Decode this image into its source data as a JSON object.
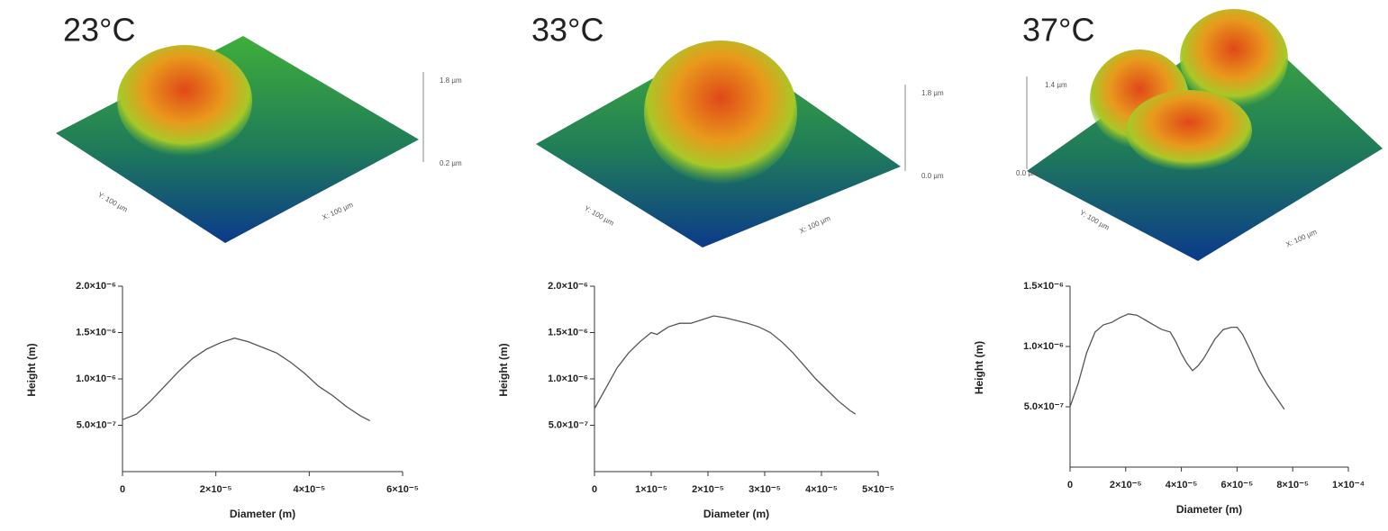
{
  "chart_data": [
    {
      "type": "line",
      "title": "23°C",
      "x_label": "Diameter (m)",
      "y_label": "Height (m)",
      "color": "#555555",
      "surface": {
        "z_top": "1.8 µm",
        "z_bottom": "0.2 µm",
        "y_axis": "Y: 100 µm",
        "x_axis": "X: 100 µm"
      },
      "xlim": [
        0,
        6e-05
      ],
      "xticks": [
        0,
        {
          "value": 2e-05,
          "label": "2×10⁻⁵"
        },
        {
          "value": 4e-05,
          "label": "4×10⁻⁵"
        },
        {
          "value": 6e-05,
          "label": "6×10⁻⁵"
        }
      ],
      "ylim": [
        0,
        2e-06
      ],
      "yticks": [
        {
          "value": 5e-07,
          "label": "5.0×10⁻⁷"
        },
        {
          "value": 1e-06,
          "label": "1.0×10⁻⁶"
        },
        {
          "value": 1.5e-06,
          "label": "1.5×10⁻⁶"
        },
        {
          "value": 2e-06,
          "label": "2.0×10⁻⁶"
        }
      ],
      "x": [
        0,
        3e-06,
        6e-06,
        9e-06,
        1.2e-05,
        1.5e-05,
        1.8e-05,
        2.1e-05,
        2.4e-05,
        2.7e-05,
        3e-05,
        3.3e-05,
        3.6e-05,
        3.9e-05,
        4.2e-05,
        4.5e-05,
        4.8e-05,
        5.1e-05,
        5.3e-05
      ],
      "values": [
        5.6e-07,
        6.2e-07,
        7.6e-07,
        9.2e-07,
        1.08e-06,
        1.22e-06,
        1.32e-06,
        1.39e-06,
        1.44e-06,
        1.4e-06,
        1.34e-06,
        1.28e-06,
        1.18e-06,
        1.06e-06,
        9.2e-07,
        8.2e-07,
        7e-07,
        6e-07,
        5.5e-07
      ]
    },
    {
      "type": "line",
      "title": "33°C",
      "x_label": "Diameter (m)",
      "y_label": "Height (m)",
      "color": "#555555",
      "surface": {
        "z_top": "1.8 µm",
        "z_bottom": "0.0 µm",
        "y_axis": "Y: 100 µm",
        "x_axis": "X: 100 µm"
      },
      "xlim": [
        0,
        5e-05
      ],
      "xticks": [
        0,
        {
          "value": 1e-05,
          "label": "1×10⁻⁵"
        },
        {
          "value": 2e-05,
          "label": "2×10⁻⁵"
        },
        {
          "value": 3e-05,
          "label": "3×10⁻⁵"
        },
        {
          "value": 4e-05,
          "label": "4×10⁻⁵"
        },
        {
          "value": 5e-05,
          "label": "5×10⁻⁵"
        }
      ],
      "ylim": [
        0,
        2e-06
      ],
      "yticks": [
        {
          "value": 5e-07,
          "label": "5.0×10⁻⁷"
        },
        {
          "value": 1e-06,
          "label": "1.0×10⁻⁶"
        },
        {
          "value": 1.5e-06,
          "label": "1.5×10⁻⁶"
        },
        {
          "value": 2e-06,
          "label": "2.0×10⁻⁶"
        }
      ],
      "x": [
        0,
        2e-06,
        4e-06,
        6e-06,
        8e-06,
        1e-05,
        1.1e-05,
        1.3e-05,
        1.5e-05,
        1.7e-05,
        1.9e-05,
        2.1e-05,
        2.3e-05,
        2.5e-05,
        2.7e-05,
        2.9e-05,
        3.1e-05,
        3.3e-05,
        3.5e-05,
        3.7e-05,
        3.9e-05,
        4.1e-05,
        4.3e-05,
        4.5e-05,
        4.6e-05
      ],
      "values": [
        6.8e-07,
        9e-07,
        1.12e-06,
        1.28e-06,
        1.4e-06,
        1.5e-06,
        1.48e-06,
        1.56e-06,
        1.6e-06,
        1.6e-06,
        1.64e-06,
        1.68e-06,
        1.66e-06,
        1.63e-06,
        1.6e-06,
        1.56e-06,
        1.5e-06,
        1.4e-06,
        1.28e-06,
        1.14e-06,
        1e-06,
        8.8e-07,
        7.6e-07,
        6.6e-07,
        6.2e-07
      ]
    },
    {
      "type": "line",
      "title": "37°C",
      "x_label": "Diameter (m)",
      "y_label": "Height (m)",
      "color": "#555555",
      "surface": {
        "z_top": "1.4 µm",
        "z_bottom": "0.0 µm",
        "y_axis": "Y: 100 µm",
        "x_axis": "X: 100 µm"
      },
      "xlim": [
        0,
        0.0001
      ],
      "xticks": [
        0,
        {
          "value": 2e-05,
          "label": "2×10⁻⁵"
        },
        {
          "value": 4e-05,
          "label": "4×10⁻⁵"
        },
        {
          "value": 6e-05,
          "label": "6×10⁻⁵"
        },
        {
          "value": 8e-05,
          "label": "8×10⁻⁵"
        },
        {
          "value": 0.0001,
          "label": "1×10⁻⁴"
        }
      ],
      "ylim": [
        0,
        1.5e-06
      ],
      "yticks": [
        {
          "value": 5e-07,
          "label": "5.0×10⁻⁷"
        },
        {
          "value": 1e-06,
          "label": "1.0×10⁻⁶"
        },
        {
          "value": 1.5e-06,
          "label": "1.5×10⁻⁶"
        }
      ],
      "x": [
        0,
        3e-06,
        6e-06,
        9e-06,
        1.2e-05,
        1.5e-05,
        1.8e-05,
        2.1e-05,
        2.4e-05,
        2.7e-05,
        3e-05,
        3.3e-05,
        3.6e-05,
        3.8e-05,
        4e-05,
        4.2e-05,
        4.4e-05,
        4.6e-05,
        4.8e-05,
        5e-05,
        5.2e-05,
        5.5e-05,
        5.8e-05,
        6e-05,
        6.2e-05,
        6.5e-05,
        6.8e-05,
        7.1e-05,
        7.4e-05,
        7.7e-05
      ],
      "values": [
        5e-07,
        7e-07,
        9.5e-07,
        1.12e-06,
        1.18e-06,
        1.2e-06,
        1.24e-06,
        1.27e-06,
        1.26e-06,
        1.22e-06,
        1.18e-06,
        1.14e-06,
        1.12e-06,
        1.04e-06,
        9.4e-07,
        8.6e-07,
        8e-07,
        8.4e-07,
        9e-07,
        9.8e-07,
        1.06e-06,
        1.14e-06,
        1.16e-06,
        1.16e-06,
        1.1e-06,
        9.6e-07,
        8e-07,
        6.8e-07,
        5.8e-07,
        4.8e-07
      ]
    }
  ]
}
